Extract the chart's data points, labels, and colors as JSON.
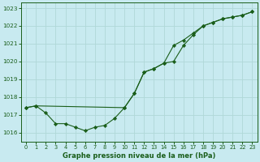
{
  "title": "Graphe pression niveau de la mer (hPa)",
  "bg_color": "#c8eaf0",
  "grid_color": "#b0d8d8",
  "line_color": "#1a5e1a",
  "xlim": [
    -0.5,
    23.5
  ],
  "ylim": [
    1015.5,
    1023.3
  ],
  "yticks": [
    1016,
    1017,
    1018,
    1019,
    1020,
    1021,
    1022,
    1023
  ],
  "xticks": [
    0,
    1,
    2,
    3,
    4,
    5,
    6,
    7,
    8,
    9,
    10,
    11,
    12,
    13,
    14,
    15,
    16,
    17,
    18,
    19,
    20,
    21,
    22,
    23
  ],
  "series_a_x": [
    0,
    1,
    10,
    11,
    12,
    13,
    14,
    15,
    16,
    17,
    18,
    19,
    20,
    21,
    22,
    23
  ],
  "series_a_y": [
    1017.4,
    1017.5,
    1017.4,
    1018.2,
    1019.4,
    1019.6,
    1019.9,
    1020.0,
    1020.9,
    1021.5,
    1022.0,
    1022.2,
    1022.4,
    1022.5,
    1022.6,
    1022.8
  ],
  "series_b_x": [
    0,
    1,
    2,
    3,
    4,
    5,
    6,
    7,
    8,
    9,
    10,
    11,
    12,
    13,
    14,
    15,
    16,
    17,
    18,
    19,
    20,
    21,
    22,
    23
  ],
  "series_b_y": [
    1017.4,
    1017.5,
    1017.1,
    1016.5,
    1016.5,
    1016.3,
    1016.1,
    1016.3,
    1016.4,
    1016.8,
    1017.4,
    1018.2,
    1019.4,
    1019.6,
    1019.9,
    1020.9,
    1021.2,
    1021.6,
    1022.0,
    1022.2,
    1022.4,
    1022.5,
    1022.6,
    1022.8
  ]
}
